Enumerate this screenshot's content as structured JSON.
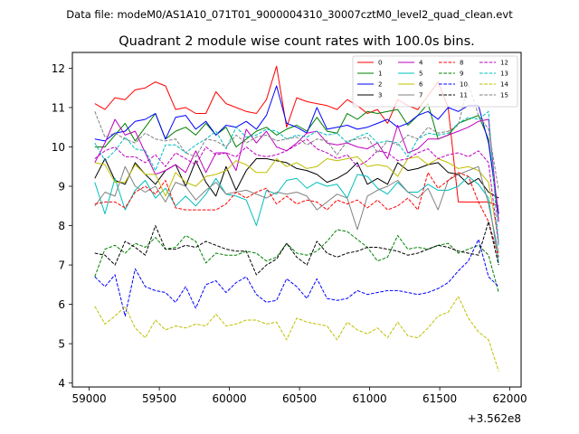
{
  "chart_data": {
    "type": "line",
    "suptitle": "Data file: modeM0/AS1A10_071T01_9000004310_30007cztM0_level2_quad_clean.evt",
    "title": "Quadrant 2 module wise count rates with 100.0s bins.",
    "xlabel": "",
    "ylabel": "",
    "x_offset_label": "+3.562e8",
    "xlim": [
      58880,
      62080
    ],
    "ylim": [
      3.9,
      12.4
    ],
    "xticks": [
      59000,
      59500,
      60000,
      60500,
      61000,
      61500,
      62000
    ],
    "xtick_labels": [
      "59000",
      "59500",
      "60000",
      "60500",
      "61000",
      "61500",
      "62000"
    ],
    "yticks": [
      4,
      5,
      6,
      7,
      8,
      9,
      10,
      11,
      12
    ],
    "ytick_labels": [
      "4",
      "5",
      "6",
      "7",
      "8",
      "9",
      "10",
      "11",
      "12"
    ],
    "legend_position": "top-right",
    "x": [
      59040,
      59112,
      59184,
      59256,
      59328,
      59400,
      59472,
      59544,
      59616,
      59688,
      59760,
      59832,
      59904,
      59976,
      60048,
      60120,
      60192,
      60264,
      60336,
      60408,
      60480,
      60552,
      60624,
      60696,
      60768,
      60840,
      60912,
      60984,
      61056,
      61128,
      61200,
      61272,
      61344,
      61416,
      61488,
      61560,
      61632,
      61704,
      61776,
      61848,
      61920
    ],
    "series": [
      {
        "name": "0",
        "color": "#ff0000",
        "dash": "solid",
        "values": [
          11.1,
          10.95,
          11.25,
          11.2,
          11.45,
          11.5,
          11.65,
          11.55,
          10.95,
          11.0,
          10.85,
          10.85,
          11.4,
          11.1,
          11.0,
          10.9,
          10.85,
          11.2,
          12.05,
          10.5,
          11.25,
          11.15,
          11.1,
          11.05,
          10.95,
          11.2,
          11.05,
          10.85,
          10.95,
          10.6,
          11.2,
          11.05,
          10.95,
          11.3,
          11.65,
          11.0,
          8.6,
          8.6,
          8.6,
          8.6,
          8.5
        ]
      },
      {
        "name": "1",
        "color": "#008000",
        "dash": "solid",
        "values": [
          10.0,
          10.0,
          10.3,
          10.6,
          10.15,
          10.5,
          10.85,
          10.2,
          10.4,
          10.5,
          10.3,
          10.6,
          10.3,
          10.5,
          10.0,
          10.2,
          10.4,
          10.5,
          10.3,
          10.45,
          10.55,
          10.4,
          10.75,
          10.4,
          10.35,
          10.85,
          10.7,
          10.9,
          10.85,
          10.9,
          10.95,
          10.55,
          10.8,
          11.1,
          10.2,
          10.3,
          10.6,
          10.7,
          10.8,
          10.2,
          8.1
        ]
      },
      {
        "name": "2",
        "color": "#0000ff",
        "dash": "solid",
        "values": [
          10.2,
          10.15,
          10.35,
          10.4,
          10.65,
          10.7,
          10.85,
          10.2,
          10.75,
          10.8,
          10.45,
          10.65,
          10.3,
          10.55,
          10.5,
          10.65,
          10.45,
          10.8,
          11.55,
          10.6,
          10.5,
          10.35,
          11.0,
          10.45,
          10.5,
          10.55,
          10.45,
          10.5,
          10.6,
          10.7,
          10.5,
          10.6,
          10.8,
          10.9,
          10.7,
          11.0,
          10.9,
          11.05,
          11.05,
          10.1,
          8.3
        ]
      },
      {
        "name": "3",
        "color": "#000000",
        "dash": "solid",
        "values": [
          9.2,
          9.7,
          9.15,
          9.05,
          9.6,
          9.3,
          9.05,
          9.4,
          9.55,
          9.0,
          9.65,
          9.1,
          8.75,
          9.5,
          8.9,
          9.4,
          9.7,
          9.7,
          9.65,
          9.6,
          9.45,
          9.4,
          9.3,
          9.1,
          9.2,
          9.35,
          9.6,
          9.05,
          9.2,
          9.05,
          9.6,
          9.4,
          9.45,
          9.55,
          9.6,
          9.35,
          9.3,
          9.05,
          9.2,
          8.85,
          8.7
        ]
      },
      {
        "name": "4",
        "color": "#bf00bf",
        "dash": "solid",
        "values": [
          9.6,
          10.1,
          10.7,
          10.3,
          10.4,
          9.85,
          9.3,
          9.4,
          9.55,
          9.35,
          9.9,
          9.35,
          9.85,
          9.85,
          9.4,
          10.45,
          10.1,
          10.4,
          10.0,
          9.9,
          10.1,
          10.35,
          10.4,
          10.1,
          10.05,
          10.1,
          10.0,
          9.95,
          10.1,
          9.7,
          10.55,
          9.85,
          9.95,
          10.2,
          10.2,
          10.3,
          10.4,
          10.5,
          10.65,
          10.7,
          8.1
        ]
      },
      {
        "name": "5",
        "color": "#00bfbf",
        "dash": "solid",
        "values": [
          9.1,
          8.3,
          9.2,
          8.4,
          8.9,
          9.15,
          8.7,
          8.95,
          8.5,
          8.75,
          8.5,
          8.8,
          9.2,
          8.8,
          8.75,
          8.65,
          8.0,
          8.9,
          8.8,
          9.15,
          9.2,
          8.95,
          9.1,
          9.0,
          9.05,
          8.7,
          9.3,
          9.25,
          8.95,
          8.8,
          9.1,
          8.85,
          8.85,
          9.05,
          8.9,
          8.9,
          9.0,
          9.25,
          9.05,
          8.7,
          7.05
        ]
      },
      {
        "name": "6",
        "color": "#bfbf00",
        "dash": "solid",
        "values": [
          9.6,
          9.55,
          9.1,
          9.1,
          9.55,
          9.3,
          9.3,
          8.75,
          9.35,
          9.1,
          9.0,
          9.25,
          9.3,
          9.4,
          9.65,
          9.55,
          9.35,
          9.35,
          9.7,
          9.5,
          9.6,
          9.45,
          9.5,
          9.7,
          9.65,
          9.7,
          9.75,
          9.5,
          9.55,
          9.5,
          9.25,
          9.7,
          9.75,
          9.55,
          9.7,
          9.6,
          9.45,
          9.5,
          9.4,
          9.1,
          7.6
        ]
      },
      {
        "name": "7",
        "color": "#808080",
        "dash": "solid",
        "values": [
          8.5,
          8.85,
          8.75,
          9.5,
          9.0,
          8.85,
          9.0,
          8.6,
          9.1,
          9.0,
          8.65,
          8.9,
          9.1,
          8.8,
          8.85,
          8.9,
          8.8,
          8.7,
          8.85,
          8.8,
          8.85,
          8.75,
          8.4,
          8.6,
          8.8,
          8.7,
          7.9,
          8.75,
          8.9,
          9.0,
          9.15,
          8.85,
          8.7,
          8.95,
          8.4,
          9.15,
          9.3,
          9.4,
          9.5,
          8.55,
          7.3
        ]
      },
      {
        "name": "8",
        "color": "#ff0000",
        "dash": "dashed",
        "values": [
          8.55,
          8.6,
          8.6,
          8.45,
          8.85,
          9.0,
          8.8,
          9.15,
          8.45,
          8.4,
          8.4,
          8.4,
          8.4,
          8.55,
          8.85,
          8.7,
          8.85,
          8.95,
          8.55,
          8.75,
          8.55,
          8.65,
          8.6,
          8.4,
          8.65,
          8.55,
          8.65,
          8.45,
          8.65,
          8.4,
          8.5,
          8.7,
          8.4,
          9.35,
          8.95,
          9.15,
          9.35,
          9.25,
          8.6,
          8.1,
          7.2
        ]
      },
      {
        "name": "9",
        "color": "#008000",
        "dash": "dashed",
        "values": [
          6.7,
          7.4,
          7.5,
          7.3,
          7.55,
          7.45,
          7.7,
          7.4,
          7.45,
          7.75,
          7.6,
          7.05,
          7.3,
          7.25,
          7.25,
          7.35,
          7.3,
          7.1,
          7.2,
          7.55,
          7.3,
          7.25,
          7.35,
          7.6,
          7.9,
          7.85,
          7.65,
          7.45,
          7.1,
          7.2,
          7.75,
          7.4,
          7.45,
          7.4,
          7.5,
          7.55,
          7.3,
          7.4,
          7.5,
          7.25,
          6.3
        ]
      },
      {
        "name": "10",
        "color": "#0000ff",
        "dash": "dashed",
        "values": [
          6.7,
          6.45,
          6.75,
          5.7,
          6.9,
          6.45,
          6.35,
          6.3,
          6.05,
          6.45,
          5.9,
          6.5,
          6.6,
          6.3,
          6.55,
          6.7,
          6.25,
          6.05,
          6.1,
          6.65,
          6.45,
          6.15,
          6.65,
          6.15,
          6.1,
          6.15,
          6.35,
          6.25,
          6.3,
          6.35,
          6.35,
          6.3,
          6.25,
          6.3,
          6.4,
          6.55,
          6.85,
          7.1,
          7.65,
          6.7,
          6.45
        ]
      },
      {
        "name": "11",
        "color": "#000000",
        "dash": "dashed",
        "values": [
          7.3,
          7.25,
          7.0,
          7.6,
          7.45,
          7.25,
          8.0,
          7.4,
          7.4,
          7.5,
          7.45,
          7.6,
          7.5,
          7.4,
          7.35,
          7.35,
          6.75,
          7.0,
          7.15,
          7.55,
          7.2,
          7.0,
          7.6,
          7.3,
          7.2,
          7.3,
          7.35,
          7.45,
          7.45,
          7.4,
          7.35,
          7.25,
          7.3,
          7.4,
          7.5,
          7.45,
          7.35,
          7.3,
          7.25,
          8.1,
          7.0
        ]
      },
      {
        "name": "12",
        "color": "#bf00bf",
        "dash": "dashed",
        "values": [
          9.7,
          9.9,
          10.0,
          9.75,
          9.75,
          9.6,
          9.8,
          9.5,
          9.85,
          9.7,
          9.55,
          10.0,
          9.8,
          9.85,
          9.75,
          10.0,
          9.8,
          9.75,
          9.8,
          9.9,
          10.05,
          10.2,
          9.95,
          9.85,
          9.7,
          9.8,
          9.5,
          9.65,
          9.9,
          9.85,
          9.65,
          9.7,
          9.85,
          9.95,
          9.7,
          9.8,
          9.85,
          9.75,
          9.9,
          9.6,
          7.5
        ]
      },
      {
        "name": "13",
        "color": "#00bfbf",
        "dash": "dashed",
        "values": [
          10.1,
          9.65,
          9.9,
          10.25,
          9.95,
          9.9,
          9.4,
          10.05,
          10.05,
          9.85,
          10.05,
          10.2,
          10.4,
          9.95,
          10.5,
          10.25,
          10.3,
          10.45,
          10.4,
          10.2,
          10.3,
          10.25,
          10.4,
          10.3,
          10.35,
          10.1,
          10.25,
          10.35,
          10.1,
          10.15,
          10.1,
          9.75,
          10.2,
          10.35,
          10.3,
          10.35,
          10.6,
          10.75,
          10.7,
          10.9,
          7.5
        ]
      },
      {
        "name": "14",
        "color": "#bfbf00",
        "dash": "dashed",
        "values": [
          5.95,
          5.5,
          5.7,
          5.95,
          5.4,
          5.15,
          5.6,
          5.35,
          5.45,
          5.4,
          5.5,
          5.45,
          5.75,
          5.45,
          5.5,
          5.6,
          5.6,
          5.5,
          5.55,
          5.1,
          5.65,
          5.55,
          5.5,
          5.45,
          5.1,
          5.55,
          5.35,
          5.25,
          5.4,
          5.15,
          5.55,
          5.2,
          5.15,
          5.4,
          5.7,
          5.8,
          6.2,
          5.65,
          5.3,
          5.1,
          4.3
        ]
      },
      {
        "name": "15",
        "color": "#808080",
        "dash": "dashed",
        "values": [
          10.9,
          10.25,
          10.35,
          10.2,
          10.1,
          10.35,
          10.2,
          10.15,
          10.2,
          9.85,
          9.75,
          10.2,
          10.15,
          10.0,
          10.3,
          10.1,
          10.25,
          10.3,
          10.15,
          10.2,
          10.25,
          10.05,
          10.2,
          10.15,
          9.8,
          10.15,
          10.2,
          10.25,
          9.85,
          10.15,
          10.05,
          10.3,
          10.2,
          10.5,
          10.35,
          10.4,
          10.55,
          11.6,
          10.8,
          10.45,
          8.9
        ]
      }
    ]
  }
}
